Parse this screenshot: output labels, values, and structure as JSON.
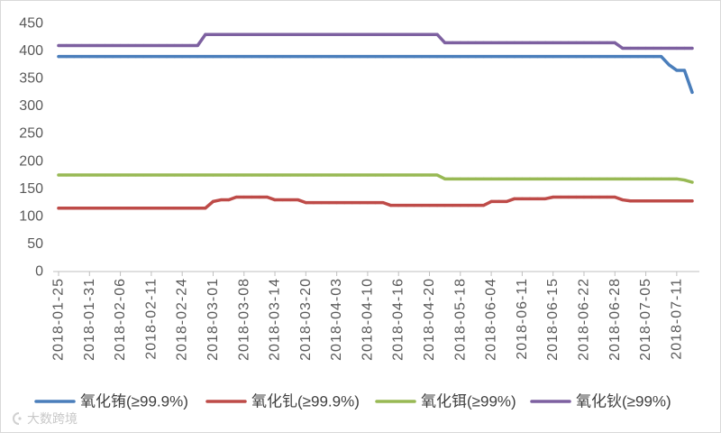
{
  "chart_data": {
    "type": "line",
    "grid": false,
    "legend": "bottom",
    "ylim": [
      0,
      450
    ],
    "yticks": [
      0,
      50,
      100,
      150,
      200,
      250,
      300,
      350,
      400,
      450
    ],
    "categories": [
      "2018-01-25",
      "",
      "",
      "",
      "2018-01-31",
      "",
      "",
      "",
      "2018-02-06",
      "",
      "",
      "",
      "2018-02-11",
      "",
      "",
      "",
      "2018-02-24",
      "",
      "",
      "",
      "2018-03-01",
      "",
      "",
      "",
      "2018-03-08",
      "",
      "",
      "",
      "2018-03-14",
      "",
      "",
      "",
      "2018-03-20",
      "",
      "",
      "",
      "2018-04-03",
      "",
      "",
      "",
      "2018-04-10",
      "",
      "",
      "",
      "2018-04-16",
      "",
      "",
      "",
      "2018-04-20",
      "",
      "",
      "",
      "2018-05-18",
      "",
      "",
      "",
      "2018-06-04",
      "",
      "",
      "",
      "2018-06-11",
      "",
      "",
      "",
      "2018-06-15",
      "",
      "",
      "",
      "2018-06-22",
      "",
      "",
      "",
      "2018-06-28",
      "",
      "",
      "",
      "2018-07-05",
      "",
      "",
      "",
      "2018-07-11",
      "",
      ""
    ],
    "series": [
      {
        "name": "氧化铕(≥99.9%)",
        "color": "#4a7ebb",
        "values": [
          390,
          390,
          390,
          390,
          390,
          390,
          390,
          390,
          390,
          390,
          390,
          390,
          390,
          390,
          390,
          390,
          390,
          390,
          390,
          390,
          390,
          390,
          390,
          390,
          390,
          390,
          390,
          390,
          390,
          390,
          390,
          390,
          390,
          390,
          390,
          390,
          390,
          390,
          390,
          390,
          390,
          390,
          390,
          390,
          390,
          390,
          390,
          390,
          390,
          390,
          390,
          390,
          390,
          390,
          390,
          390,
          390,
          390,
          390,
          390,
          390,
          390,
          390,
          390,
          390,
          390,
          390,
          390,
          390,
          390,
          390,
          390,
          390,
          390,
          390,
          390,
          390,
          390,
          390,
          375,
          365,
          365,
          325
        ]
      },
      {
        "name": "氧化钆(≥99.9%)",
        "color": "#be4b48",
        "values": [
          115,
          115,
          115,
          115,
          115,
          115,
          115,
          115,
          115,
          115,
          115,
          115,
          115,
          115,
          115,
          115,
          115,
          115,
          115,
          115,
          127,
          130,
          130,
          135,
          135,
          135,
          135,
          135,
          130,
          130,
          130,
          130,
          125,
          125,
          125,
          125,
          125,
          125,
          125,
          125,
          125,
          125,
          125,
          120,
          120,
          120,
          120,
          120,
          120,
          120,
          120,
          120,
          120,
          120,
          120,
          120,
          127,
          127,
          127,
          132,
          132,
          132,
          132,
          132,
          135,
          135,
          135,
          135,
          135,
          135,
          135,
          135,
          135,
          130,
          128,
          128,
          128,
          128,
          128,
          128,
          128,
          128,
          128
        ]
      },
      {
        "name": "氧化铒(≥99%)",
        "color": "#98b954",
        "values": [
          175,
          175,
          175,
          175,
          175,
          175,
          175,
          175,
          175,
          175,
          175,
          175,
          175,
          175,
          175,
          175,
          175,
          175,
          175,
          175,
          175,
          175,
          175,
          175,
          175,
          175,
          175,
          175,
          175,
          175,
          175,
          175,
          175,
          175,
          175,
          175,
          175,
          175,
          175,
          175,
          175,
          175,
          175,
          175,
          175,
          175,
          175,
          175,
          175,
          175,
          168,
          168,
          168,
          168,
          168,
          168,
          168,
          168,
          168,
          168,
          168,
          168,
          168,
          168,
          168,
          168,
          168,
          168,
          168,
          168,
          168,
          168,
          168,
          168,
          168,
          168,
          168,
          168,
          168,
          168,
          168,
          166,
          162
        ]
      },
      {
        "name": "氧化钬(≥99%)",
        "color": "#7d60a0",
        "values": [
          410,
          410,
          410,
          410,
          410,
          410,
          410,
          410,
          410,
          410,
          410,
          410,
          410,
          410,
          410,
          410,
          410,
          410,
          410,
          430,
          430,
          430,
          430,
          430,
          430,
          430,
          430,
          430,
          430,
          430,
          430,
          430,
          430,
          430,
          430,
          430,
          430,
          430,
          430,
          430,
          430,
          430,
          430,
          430,
          430,
          430,
          430,
          430,
          430,
          430,
          415,
          415,
          415,
          415,
          415,
          415,
          415,
          415,
          415,
          415,
          415,
          415,
          415,
          415,
          415,
          415,
          415,
          415,
          415,
          415,
          415,
          415,
          415,
          405,
          405,
          405,
          405,
          405,
          405,
          405,
          405,
          405,
          405
        ]
      }
    ]
  },
  "watermark": {
    "text": "大数跨境",
    "logo_icon": "watermark-logo-icon"
  }
}
